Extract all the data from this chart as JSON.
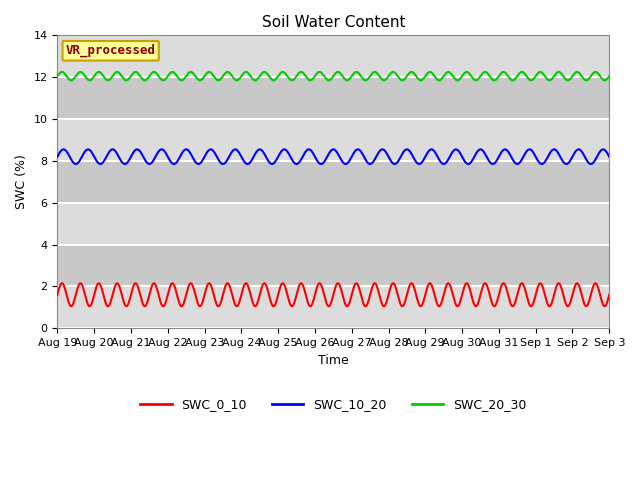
{
  "title": "Soil Water Content",
  "ylabel": "SWC (%)",
  "xlabel": "Time",
  "ylim": [
    0,
    14
  ],
  "yticks": [
    0,
    2,
    4,
    6,
    8,
    10,
    12,
    14
  ],
  "annotation_text": "VR_processed",
  "annotation_color": "#8B0000",
  "annotation_bg": "#FFFF99",
  "annotation_border": "#C8A000",
  "series": {
    "SWC_0_10": {
      "mean": 1.6,
      "amplitude": 0.55,
      "freq": 2.0,
      "color": "red"
    },
    "SWC_10_20": {
      "mean": 8.2,
      "amplitude": 0.35,
      "freq": 1.5,
      "color": "blue"
    },
    "SWC_20_30": {
      "mean": 12.05,
      "amplitude": 0.2,
      "freq": 2.0,
      "color": "#00CC00"
    }
  },
  "n_days": 15,
  "background_color_light": "#DCDCDC",
  "background_color_dark": "#C8C8C8",
  "grid_color": "white",
  "x_tick_labels": [
    "Aug 19",
    "Aug 20",
    "Aug 21",
    "Aug 22",
    "Aug 23",
    "Aug 24",
    "Aug 25",
    "Aug 26",
    "Aug 27",
    "Aug 28",
    "Aug 29",
    "Aug 30",
    "Aug 31",
    "Sep 1",
    "Sep 2",
    "Sep 3"
  ],
  "legend_items": [
    {
      "label": "SWC_0_10",
      "color": "red"
    },
    {
      "label": "SWC_10_20",
      "color": "blue"
    },
    {
      "label": "SWC_20_30",
      "color": "#00CC00"
    }
  ]
}
